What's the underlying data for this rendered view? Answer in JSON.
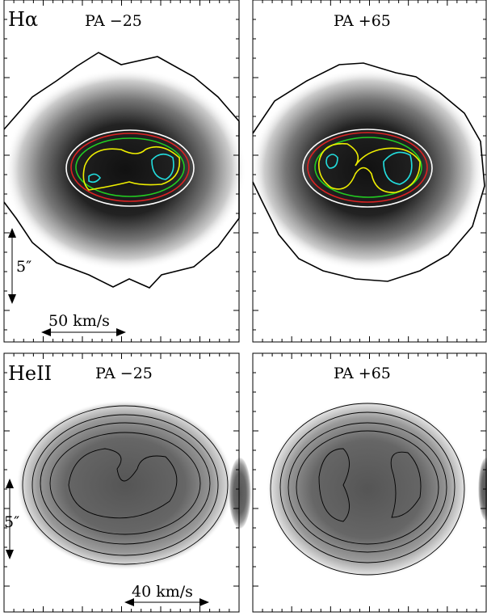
{
  "panels": [
    {
      "label": "Hα",
      "pa": "PA −25",
      "scale": "5″",
      "velocity": "50 km/s"
    },
    {
      "pa": "PA +65"
    },
    {
      "label": "HeII",
      "pa": "PA −25",
      "scale": "5″",
      "velocity": "40 km/s"
    },
    {
      "pa": "PA +65"
    }
  ]
}
